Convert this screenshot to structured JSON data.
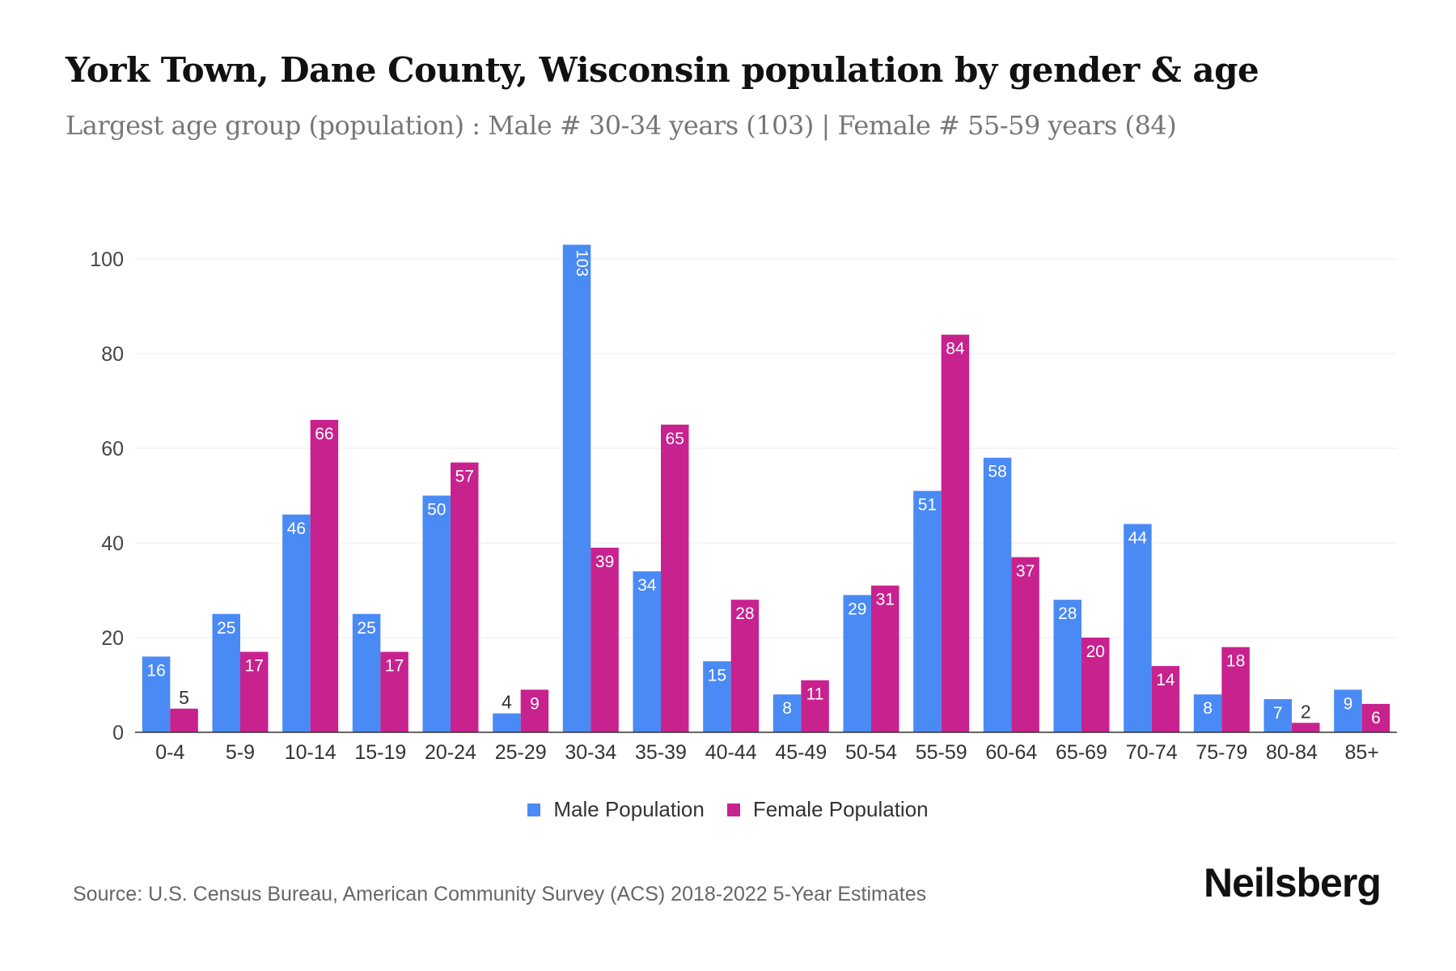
{
  "title": "York Town, Dane County, Wisconsin population by gender & age",
  "subtitle": "Largest age group (population) : Male # 30-34 years (103) | Female # 55-59 years (84)",
  "source": "Source: U.S. Census Bureau, American Community Survey (ACS) 2018-2022 5-Year Estimates",
  "logo": "Neilsberg",
  "colors": {
    "male": "#4a8af4",
    "female": "#c8228f"
  },
  "chart_data": {
    "type": "bar",
    "title": "York Town, Dane County, Wisconsin population by gender & age",
    "xlabel": "",
    "ylabel": "",
    "ylim": [
      0,
      100
    ],
    "yticks": [
      0,
      20,
      40,
      60,
      80,
      100
    ],
    "grid": true,
    "legend": "bottom-center",
    "categories": [
      "0-4",
      "5-9",
      "10-14",
      "15-19",
      "20-24",
      "25-29",
      "30-34",
      "35-39",
      "40-44",
      "45-49",
      "50-54",
      "55-59",
      "60-64",
      "65-69",
      "70-74",
      "75-79",
      "80-84",
      "85+"
    ],
    "series": [
      {
        "name": "Male Population",
        "values": [
          16,
          25,
          46,
          25,
          50,
          4,
          103,
          34,
          15,
          8,
          29,
          51,
          58,
          28,
          44,
          8,
          7,
          9
        ]
      },
      {
        "name": "Female Population",
        "values": [
          5,
          17,
          66,
          17,
          57,
          9,
          39,
          65,
          28,
          11,
          31,
          84,
          37,
          20,
          14,
          18,
          2,
          6
        ]
      }
    ]
  }
}
